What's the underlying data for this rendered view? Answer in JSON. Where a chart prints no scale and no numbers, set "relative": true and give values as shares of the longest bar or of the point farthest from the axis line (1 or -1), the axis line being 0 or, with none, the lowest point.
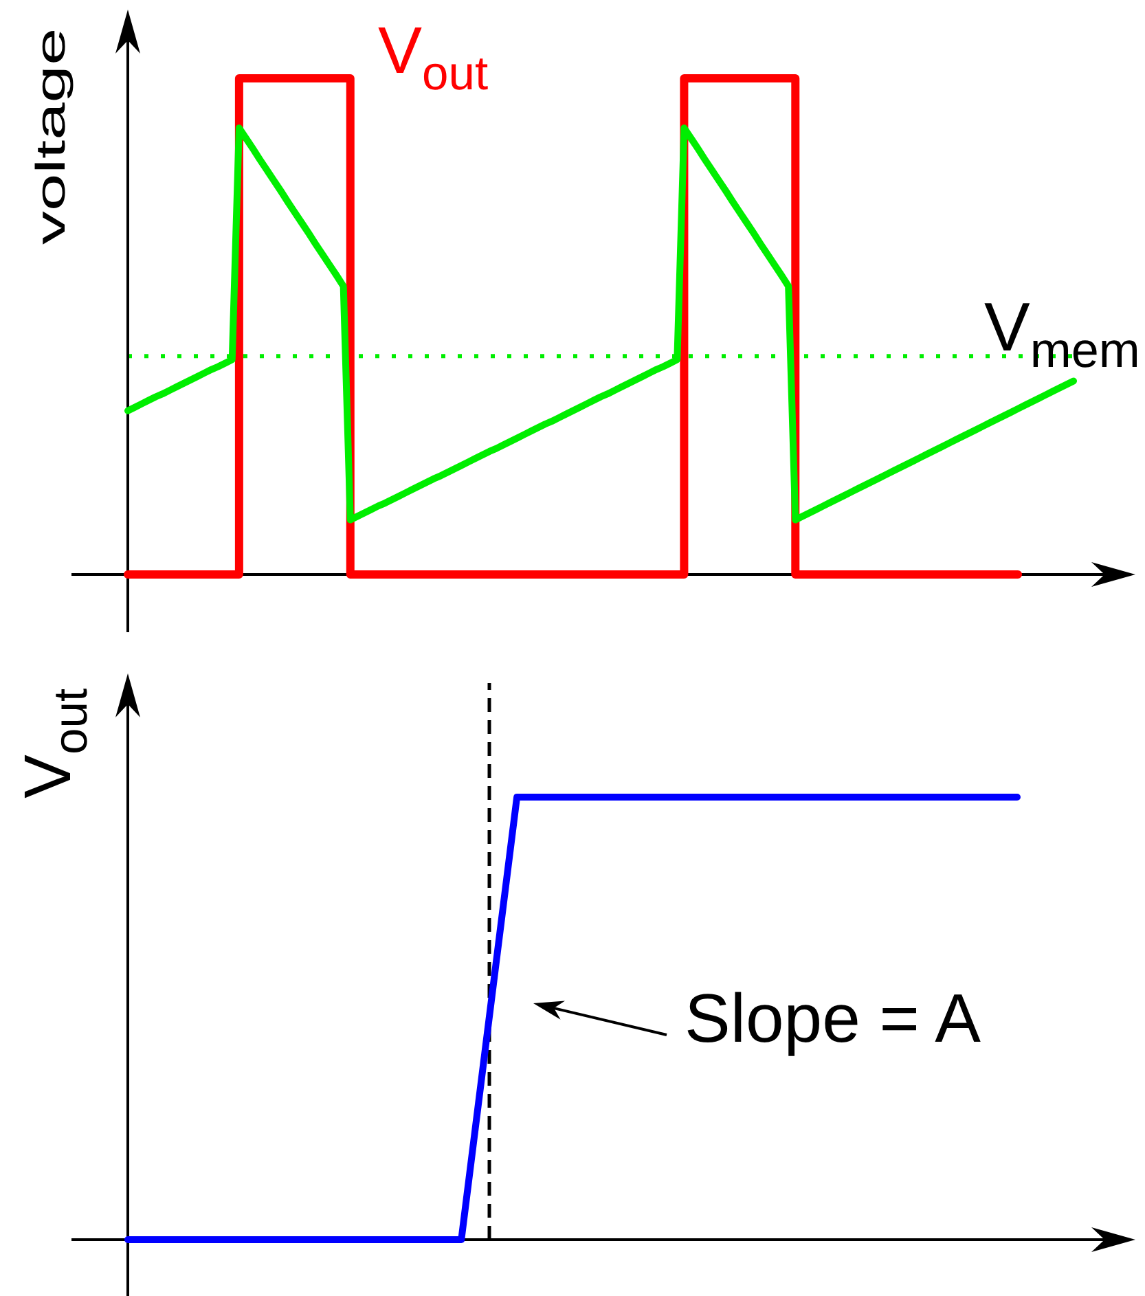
{
  "chart_data": [
    {
      "type": "line",
      "ylabel": "voltage",
      "relative": true,
      "tick_labels": false,
      "marker": "none",
      "categories": [
        null,
        null,
        null,
        null,
        null,
        null,
        null,
        null,
        null,
        null,
        null,
        null,
        null,
        null,
        null,
        null,
        null,
        null,
        null,
        null,
        null,
        null,
        null,
        null,
        null,
        null,
        null,
        null,
        null,
        null,
        null,
        null,
        null,
        null,
        null,
        null,
        null,
        null,
        null,
        null,
        null,
        null,
        null,
        null,
        null,
        null,
        null,
        null,
        null,
        null,
        null,
        null,
        null,
        null,
        null,
        null,
        null,
        null,
        null,
        null,
        null,
        null,
        null,
        null,
        null,
        null,
        null,
        null,
        null,
        null,
        null,
        null,
        null,
        null,
        null,
        null,
        null,
        null,
        null,
        null,
        null,
        null,
        null,
        null,
        null,
        null,
        null,
        null,
        null,
        null,
        null,
        null,
        null,
        null,
        null,
        null,
        null,
        null,
        null,
        null,
        null,
        null,
        null,
        null,
        null,
        null,
        null,
        null,
        null,
        null,
        null,
        null,
        null,
        null,
        null,
        null,
        null,
        null,
        null,
        null,
        null,
        null,
        null,
        null,
        null,
        null,
        null,
        null,
        null,
        null,
        null,
        null,
        null,
        null,
        null,
        null,
        null
      ],
      "series": [
        {
          "name": "V$_{out}$",
          "type": "step",
          "color": "#ff0000",
          "values": [
            0,
            0,
            0,
            0,
            0,
            0,
            0,
            0,
            0,
            0,
            0,
            0,
            0,
            0,
            0,
            0,
            1,
            1,
            1,
            1,
            1,
            1,
            1,
            1,
            1,
            1,
            1,
            1,
            1,
            1,
            1,
            1,
            0,
            0,
            0,
            0,
            0,
            0,
            0,
            0,
            0,
            0,
            0,
            0,
            0,
            0,
            0,
            0,
            0,
            0,
            0,
            0,
            0,
            0,
            0,
            0,
            0,
            0,
            0,
            0,
            0,
            0,
            0,
            0,
            0,
            0,
            0,
            0,
            0,
            0,
            0,
            0,
            0,
            0,
            0,
            0,
            0,
            0,
            0,
            0,
            1,
            1,
            1,
            1,
            1,
            1,
            1,
            1,
            1,
            1,
            1,
            1,
            1,
            1,
            1,
            1,
            0,
            0,
            0,
            0,
            0,
            0,
            0,
            0,
            0,
            0,
            0,
            0,
            0,
            0,
            0,
            0,
            0,
            0,
            0,
            0,
            0,
            0,
            0,
            0,
            0,
            0,
            0,
            0,
            0,
            0,
            0,
            0,
            0,
            null,
            null,
            null,
            null,
            null,
            null,
            null,
            null
          ]
        },
        {
          "name": "V$_{mem}$",
          "color": "#00ee00",
          "values": [
            0.33,
            0.337,
            0.344,
            0.351,
            0.358,
            0.364,
            0.371,
            0.378,
            0.385,
            0.392,
            0.399,
            0.406,
            0.413,
            0.419,
            0.426,
            0.433,
            0.9,
            0.879,
            0.858,
            0.836,
            0.815,
            0.794,
            0.773,
            0.751,
            0.73,
            0.709,
            0.688,
            0.666,
            0.645,
            0.624,
            0.603,
            0.581,
            0.11,
            0.117,
            0.124,
            0.131,
            0.138,
            0.144,
            0.151,
            0.158,
            0.165,
            0.172,
            0.179,
            0.186,
            0.193,
            0.199,
            0.206,
            0.213,
            0.22,
            0.227,
            0.234,
            0.241,
            0.248,
            0.254,
            0.261,
            0.268,
            0.275,
            0.282,
            0.289,
            0.296,
            0.303,
            0.309,
            0.316,
            0.323,
            0.33,
            0.337,
            0.344,
            0.351,
            0.358,
            0.364,
            0.371,
            0.378,
            0.385,
            0.392,
            0.399,
            0.406,
            0.413,
            0.419,
            0.426,
            0.433,
            0.9,
            0.879,
            0.858,
            0.836,
            0.815,
            0.794,
            0.773,
            0.751,
            0.73,
            0.709,
            0.688,
            0.666,
            0.645,
            0.624,
            0.603,
            0.581,
            0.11,
            0.117,
            0.124,
            0.131,
            0.138,
            0.145,
            0.152,
            0.159,
            0.166,
            0.173,
            0.18,
            0.187,
            0.194,
            0.201,
            0.208,
            0.215,
            0.222,
            0.229,
            0.236,
            0.243,
            0.25,
            0.257,
            0.264,
            0.271,
            0.278,
            0.285,
            0.292,
            0.299,
            0.306,
            0.313,
            0.32,
            0.327,
            0.334,
            0.341,
            0.348,
            0.355,
            0.362,
            0.369,
            0.376,
            0.383,
            0.39
          ]
        }
      ],
      "ref_lines": [
        {
          "axis": "y",
          "value": 0.44,
          "color": "#00ee00",
          "line_style": "dotted"
        }
      ]
    },
    {
      "type": "line",
      "ylabel": "V$_{out}$",
      "relative": true,
      "tick_labels": false,
      "marker": "none",
      "categories": [
        null,
        null,
        null,
        null,
        null,
        null,
        null,
        null,
        null,
        null,
        null,
        null,
        null,
        null,
        null,
        null,
        null
      ],
      "series": [
        {
          "color": "#0000ff",
          "values": [
            0,
            0,
            0,
            0,
            0,
            0,
            0,
            1,
            1,
            1,
            1,
            1,
            1,
            1,
            1,
            1,
            1
          ]
        }
      ],
      "annotations": [
        "Slope = A"
      ]
    }
  ]
}
